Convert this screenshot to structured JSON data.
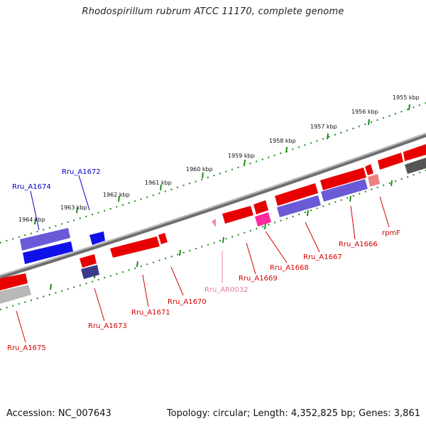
{
  "title": "Rhodospirillum rubrum ATCC 11170, complete genome",
  "footer": {
    "accession": "Accession: NC_007643",
    "topology": "Topology: circular; Length: 4,352,825 bp; Genes: 3,861"
  },
  "colors": {
    "backbone": "#8a8a8a",
    "tick": "#1a8a1a",
    "forward_red": "#ff0000",
    "rna_pink": "#f28ab8",
    "label_red": "#d40000",
    "label_blue": "#0000c8",
    "label_pink": "#e87aa6"
  },
  "kbp_ticks": [
    {
      "label": "1955 kbp"
    },
    {
      "label": "1956 kbp"
    },
    {
      "label": "1957 kbp"
    },
    {
      "label": "1958 kbp"
    },
    {
      "label": "1959 kbp"
    },
    {
      "label": "1960 kbp"
    },
    {
      "label": "1961 kbp"
    },
    {
      "label": "1962 kbp"
    },
    {
      "label": "1963 kbp"
    },
    {
      "label": "1964 kbp"
    }
  ],
  "gene_labels": [
    {
      "text": "Rru_A1672",
      "color": "blue"
    },
    {
      "text": "Rru_A1674",
      "color": "blue"
    },
    {
      "text": "Rru_A1675",
      "color": "red"
    },
    {
      "text": "Rru_A1673",
      "color": "red"
    },
    {
      "text": "Rru_A1671",
      "color": "red"
    },
    {
      "text": "Rru_A1670",
      "color": "red"
    },
    {
      "text": "Rru_AR0032",
      "color": "pink"
    },
    {
      "text": "Rru_A1669",
      "color": "red"
    },
    {
      "text": "Rru_A1668",
      "color": "red"
    },
    {
      "text": "Rru_A1667",
      "color": "red"
    },
    {
      "text": "Rru_A1666",
      "color": "red"
    },
    {
      "text": "rpmF",
      "color": "red"
    }
  ]
}
